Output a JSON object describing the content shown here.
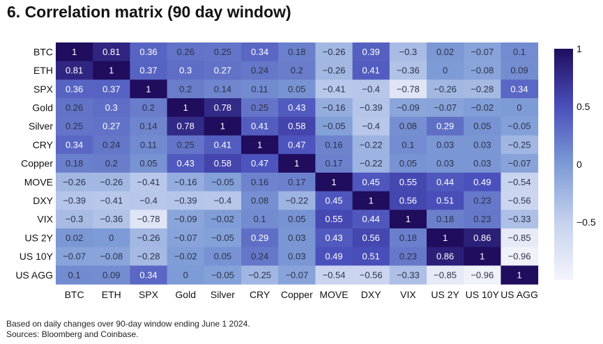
{
  "title": "6. Correlation matrix (90 day window)",
  "footnote": "Based on daily changes over 90-day window ending June 1 2024.",
  "sources": "Sources: Bloomberg and Coinbase.",
  "chart_data": {
    "type": "heatmap",
    "title": "6. Correlation matrix (90 day window)",
    "labels": [
      "BTC",
      "ETH",
      "SPX",
      "Gold",
      "Silver",
      "CRY",
      "Copper",
      "MOVE",
      "DXY",
      "VIX",
      "US 2Y",
      "US 10Y",
      "US AGG"
    ],
    "values": [
      [
        1,
        0.81,
        0.36,
        0.26,
        0.25,
        0.34,
        0.18,
        -0.26,
        0.39,
        -0.3,
        0.02,
        -0.07,
        0.1
      ],
      [
        0.81,
        1,
        0.37,
        0.3,
        0.27,
        0.24,
        0.2,
        -0.26,
        0.41,
        -0.36,
        0,
        -0.08,
        0.09
      ],
      [
        0.36,
        0.37,
        1,
        0.2,
        0.14,
        0.11,
        0.05,
        -0.41,
        -0.4,
        -0.78,
        -0.26,
        -0.28,
        0.34
      ],
      [
        0.26,
        0.3,
        0.2,
        1,
        0.78,
        0.25,
        0.43,
        -0.16,
        -0.39,
        -0.09,
        -0.07,
        -0.02,
        0
      ],
      [
        0.25,
        0.27,
        0.14,
        0.78,
        1,
        0.41,
        0.58,
        -0.05,
        -0.4,
        0.08,
        0.29,
        0.05,
        -0.05
      ],
      [
        0.34,
        0.24,
        0.11,
        0.25,
        0.41,
        1,
        0.47,
        0.16,
        -0.22,
        0.1,
        0.03,
        0.03,
        -0.25
      ],
      [
        0.18,
        0.2,
        0.05,
        0.43,
        0.58,
        0.47,
        1,
        0.17,
        -0.22,
        0.05,
        0.03,
        0.03,
        -0.07
      ],
      [
        -0.26,
        -0.26,
        -0.41,
        -0.16,
        -0.05,
        0.16,
        0.17,
        1,
        0.45,
        0.55,
        0.44,
        0.49,
        -0.54
      ],
      [
        -0.39,
        -0.41,
        -0.4,
        -0.39,
        -0.4,
        0.08,
        -0.22,
        0.45,
        1,
        0.56,
        0.51,
        0.23,
        -0.56
      ],
      [
        -0.3,
        -0.36,
        -0.78,
        -0.09,
        -0.02,
        0.1,
        0.05,
        0.55,
        0.44,
        1,
        0.18,
        0.23,
        -0.33
      ],
      [
        0.02,
        0,
        -0.26,
        -0.07,
        -0.05,
        0.29,
        0.03,
        0.43,
        0.56,
        0.18,
        1,
        0.86,
        -0.85
      ],
      [
        -0.07,
        -0.08,
        -0.28,
        -0.02,
        0.05,
        0.24,
        0.03,
        0.49,
        0.51,
        0.23,
        0.86,
        1,
        -0.96
      ],
      [
        0.1,
        0.09,
        0.34,
        0,
        -0.05,
        -0.25,
        -0.07,
        -0.54,
        -0.56,
        -0.33,
        -0.85,
        -0.96,
        1
      ]
    ],
    "colorbar": {
      "range": [
        -1,
        1
      ],
      "ticks": [
        1,
        0.5,
        0,
        -0.5
      ],
      "tick_labels": [
        "1",
        "0.5",
        "0",
        "−0.5"
      ]
    },
    "colors": {
      "low": "#f4f5fb",
      "mid_low": "#c5d1ee",
      "zero": "#7d9bd6",
      "mid_high": "#4a4fbb",
      "high": "#200d5e"
    }
  }
}
